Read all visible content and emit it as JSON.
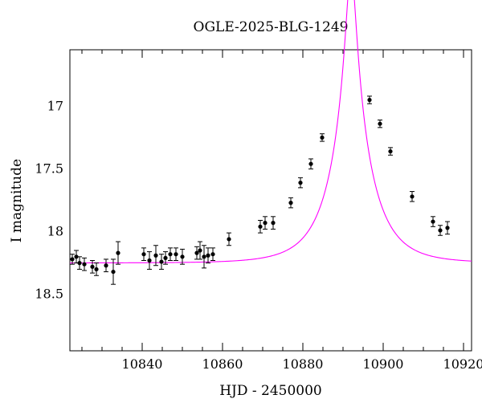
{
  "chart_data": {
    "type": "scatter",
    "title": "OGLE-2025-BLG-1249",
    "xlabel": "HJD - 2450000",
    "ylabel": "I magnitude",
    "xlim": [
      10822,
      10922
    ],
    "ylim": [
      18.95,
      16.55
    ],
    "y_inverted": true,
    "x_ticks": [
      10840,
      10860,
      10880,
      10900,
      10920
    ],
    "y_ticks": [
      17,
      17.5,
      18,
      18.5
    ],
    "x_tick_labels": [
      "10840",
      "10860",
      "10880",
      "10900",
      "10920"
    ],
    "y_tick_labels": [
      "17",
      "17.5",
      "18",
      "18.5"
    ],
    "grid": false,
    "colors": {
      "model": "#ff00ff",
      "points": "#000000"
    },
    "series": [
      {
        "kind": "points_with_errorbars",
        "x": [
          10822.6,
          10823.6,
          10824.4,
          10825.6,
          10827.6,
          10828.6,
          10831.0,
          10832.8,
          10834.0,
          10840.4,
          10841.8,
          10843.4,
          10844.8,
          10845.8,
          10847.0,
          10848.4,
          10850.0,
          10853.6,
          10854.4,
          10855.4,
          10856.4,
          10857.6,
          10861.6,
          10869.4,
          10870.6,
          10872.6,
          10877.0,
          10879.4,
          10882.0,
          10884.8,
          10896.6,
          10899.2,
          10901.8,
          10907.2,
          10912.4,
          10914.2,
          10916.0
        ],
        "y": [
          18.22,
          18.2,
          18.25,
          18.26,
          18.28,
          18.3,
          18.27,
          18.32,
          18.17,
          18.18,
          18.23,
          18.19,
          18.24,
          18.21,
          18.18,
          18.18,
          18.2,
          18.17,
          18.15,
          18.2,
          18.19,
          18.18,
          18.06,
          17.96,
          17.93,
          17.93,
          17.77,
          17.61,
          17.46,
          17.25,
          16.95,
          17.14,
          17.36,
          17.72,
          17.92,
          17.99,
          17.97
        ],
        "err": [
          0.04,
          0.05,
          0.05,
          0.05,
          0.05,
          0.05,
          0.05,
          0.1,
          0.09,
          0.05,
          0.07,
          0.08,
          0.06,
          0.05,
          0.05,
          0.05,
          0.06,
          0.05,
          0.07,
          0.09,
          0.06,
          0.05,
          0.05,
          0.05,
          0.05,
          0.05,
          0.04,
          0.04,
          0.04,
          0.03,
          0.03,
          0.03,
          0.03,
          0.04,
          0.04,
          0.04,
          0.05
        ]
      },
      {
        "kind": "model_curve",
        "model": "point-lens",
        "t0": 10892.0,
        "tE": 9.5,
        "u0": 0.1165,
        "base_mag": 18.25
      }
    ]
  }
}
